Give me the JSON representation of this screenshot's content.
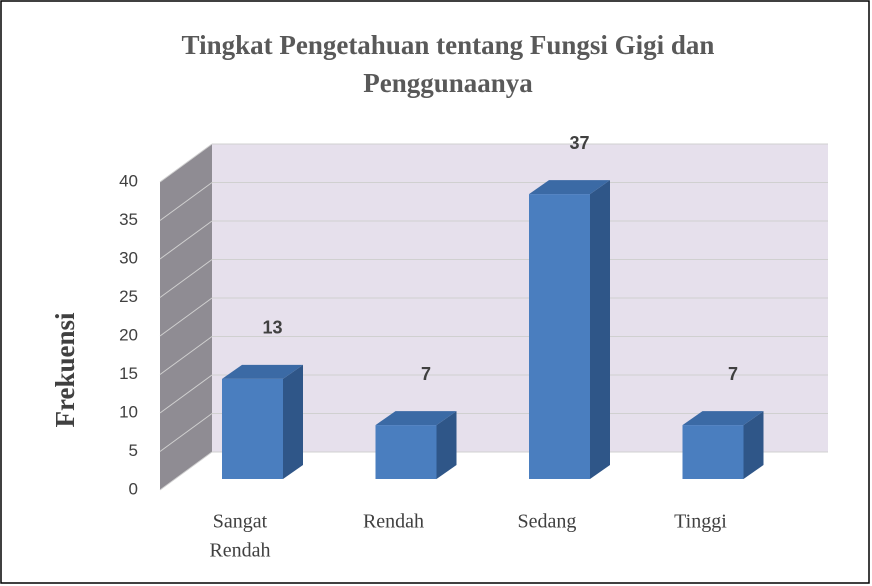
{
  "chart_data": {
    "type": "bar3d",
    "title_lines": [
      "Tingkat Pengetahuan tentang Fungsi Gigi dan",
      "Penggunaanya"
    ],
    "ylabel": "Frekuensi",
    "categories": [
      [
        "Sangat",
        "Rendah"
      ],
      [
        "Rendah"
      ],
      [
        "Sedang"
      ],
      [
        "Tinggi"
      ]
    ],
    "values": [
      13,
      7,
      37,
      7
    ],
    "color": "#4a7ebf",
    "ylim": [
      0,
      40
    ],
    "yticks": [
      0,
      5,
      10,
      15,
      20,
      25,
      30,
      35,
      40
    ],
    "grid": true
  }
}
